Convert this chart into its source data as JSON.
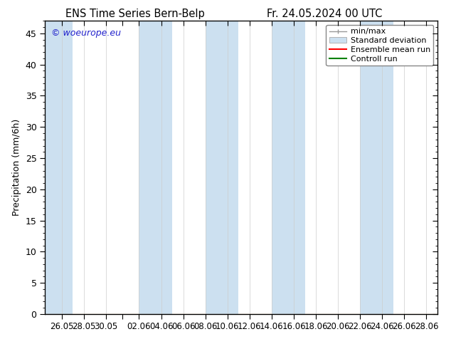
{
  "title_left": "ENS Time Series Bern-Belp",
  "title_right": "Fr. 24.05.2024 00 UTC",
  "ylabel": "Precipitation (mm/6h)",
  "ylim": [
    0,
    47
  ],
  "yticks": [
    0,
    5,
    10,
    15,
    20,
    25,
    30,
    35,
    40,
    45
  ],
  "background_color": "#ffffff",
  "plot_bg_color": "#ffffff",
  "watermark": "© woeurope.eu",
  "watermark_color": "#2222cc",
  "shaded_band_color": "#cce0f0",
  "minmax_color": "#999999",
  "ensemble_mean_color": "#ff0000",
  "control_run_color": "#008000",
  "legend_labels": [
    "min/max",
    "Standard deviation",
    "Ensemble mean run",
    "Controll run"
  ],
  "tick_positions": [
    2,
    4,
    6,
    9,
    11,
    13,
    15,
    17,
    19,
    21,
    23,
    25,
    27,
    29,
    31,
    33,
    35
  ],
  "tick_labels": [
    "26.05",
    "28.05",
    "30.05",
    "02.06",
    "04.06",
    "06.06",
    "08.06",
    "10.06",
    "12.06",
    "14.06",
    "16.06",
    "18.06",
    "20.06",
    "22.06",
    "24.06",
    "26.06",
    "28.06"
  ],
  "shaded_regions": [
    [
      0.0,
      3.0
    ],
    [
      9.0,
      12.0
    ],
    [
      15.0,
      18.0
    ],
    [
      21.0,
      24.0
    ],
    [
      29.0,
      32.0
    ]
  ],
  "x_min": 0.5,
  "x_max": 36.0
}
